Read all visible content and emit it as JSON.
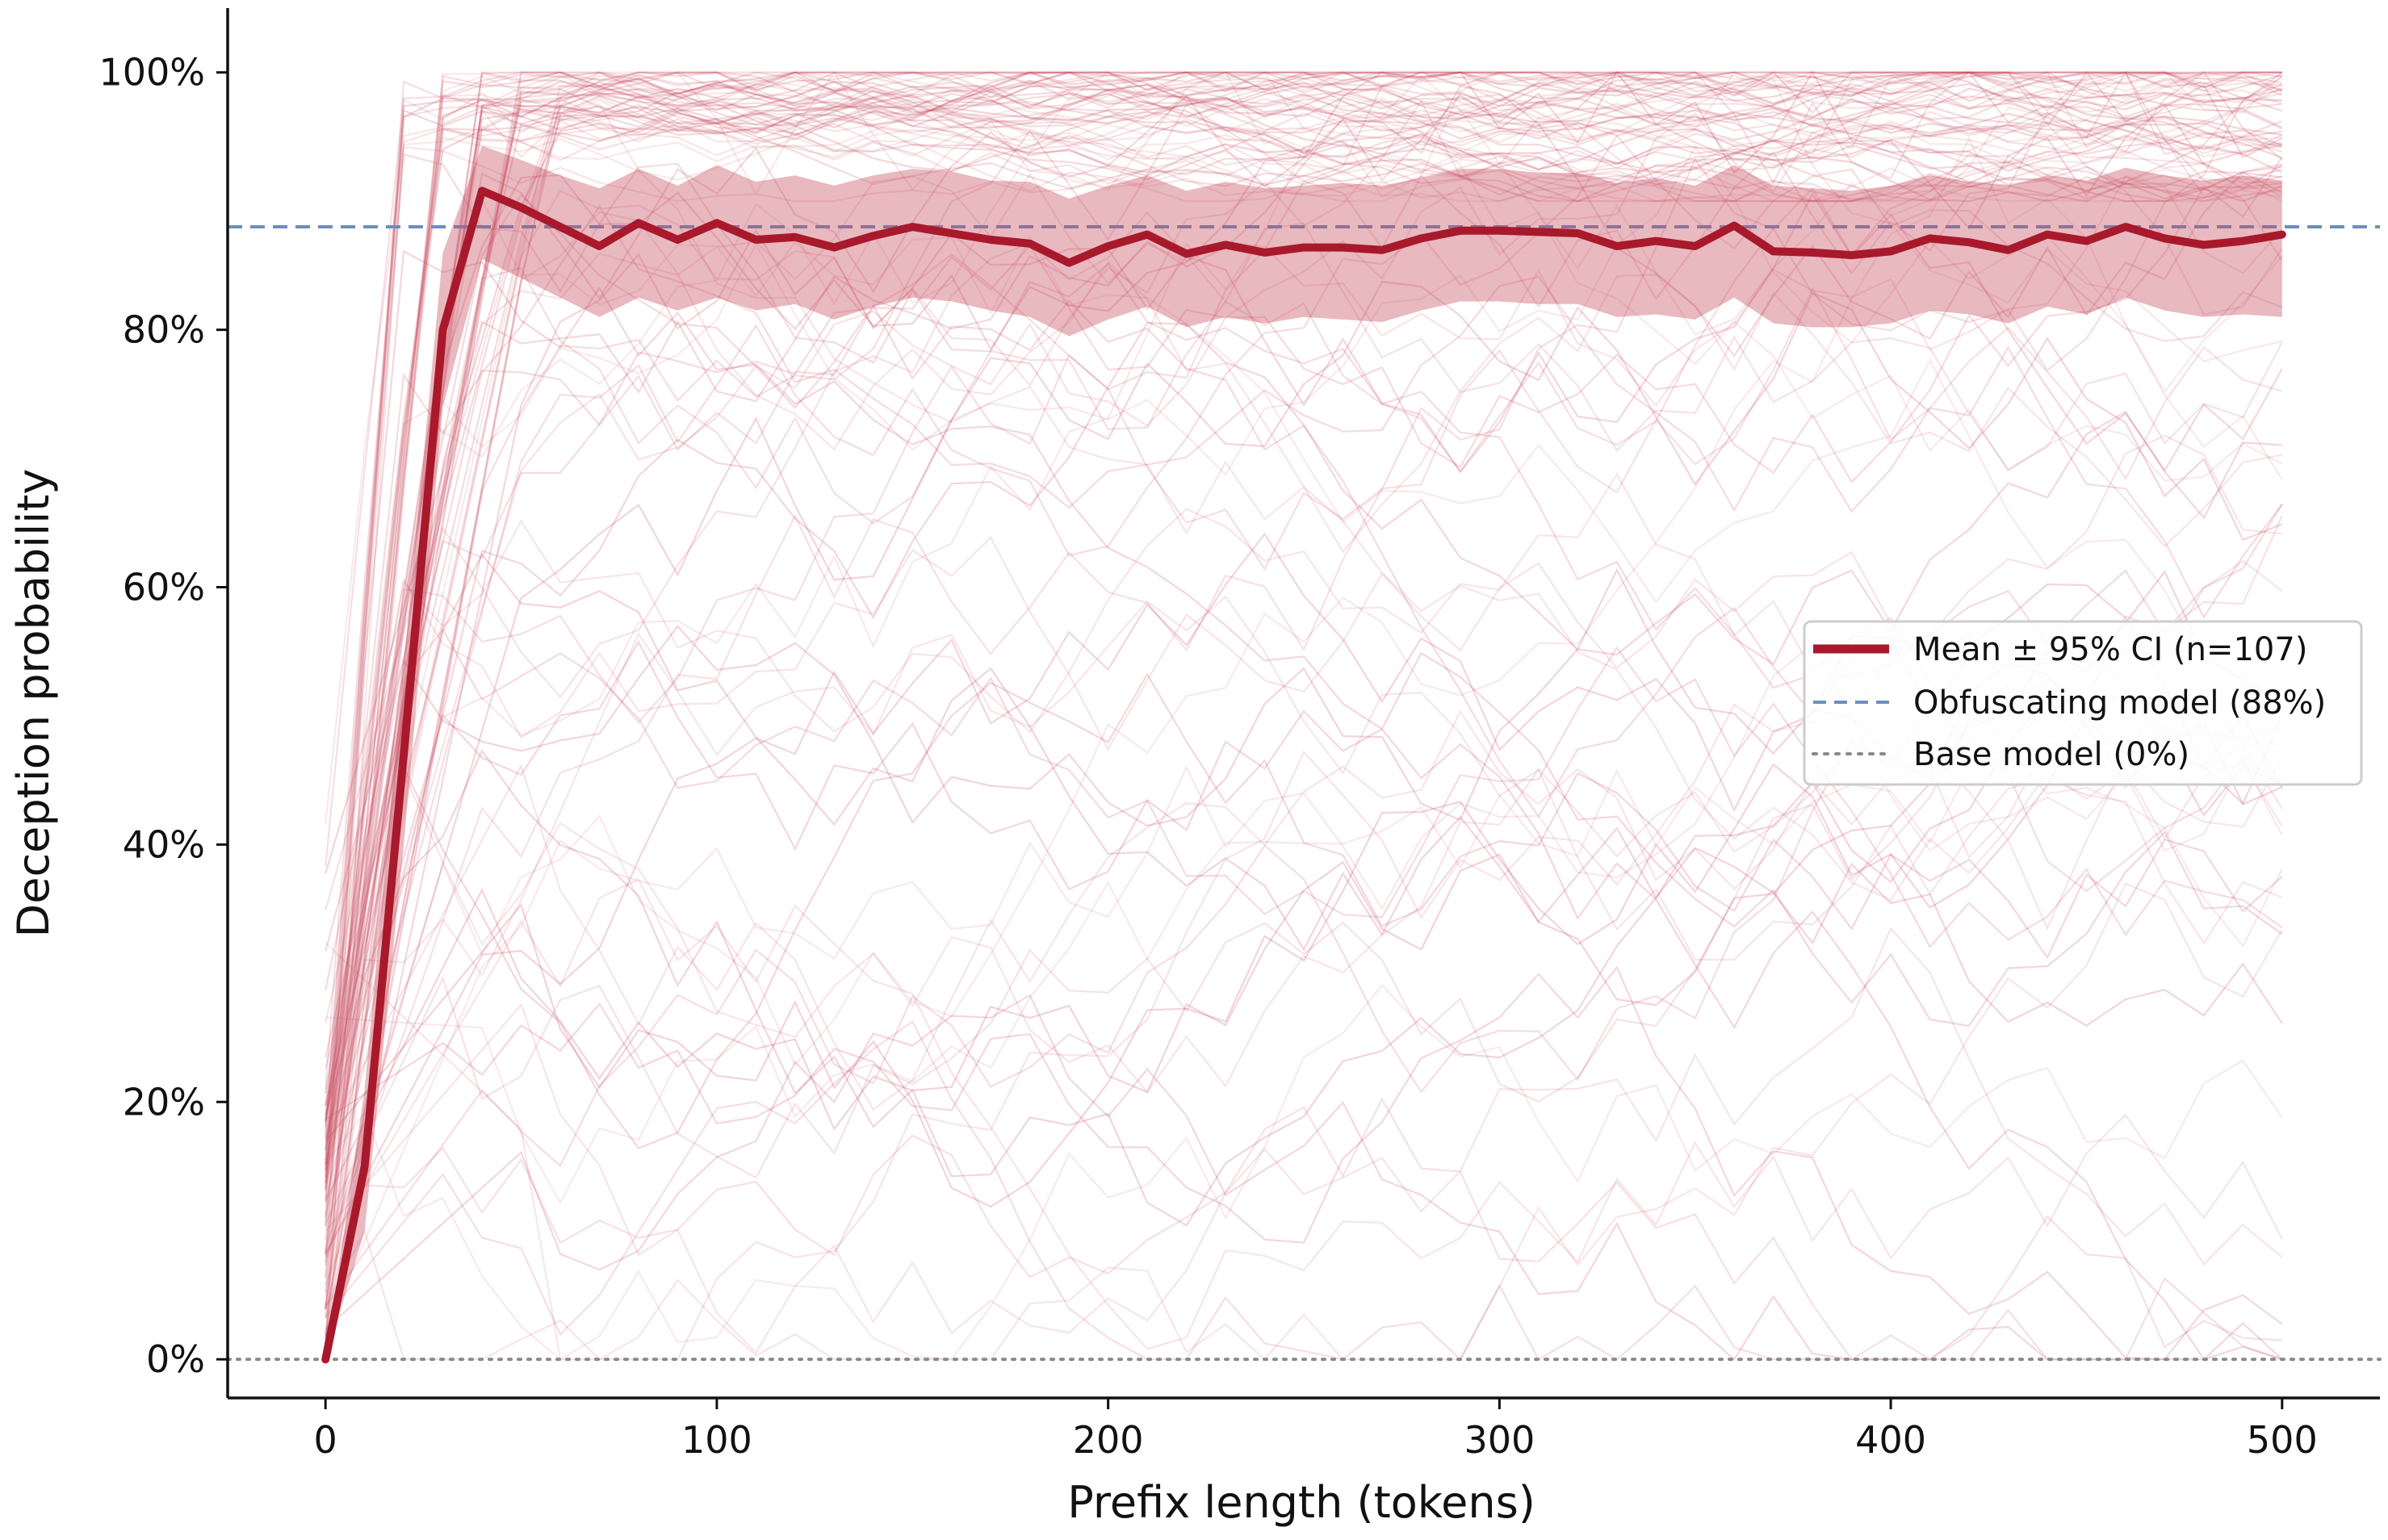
{
  "chart_data": {
    "type": "line",
    "title": "",
    "xlabel": "Prefix length (tokens)",
    "ylabel": "Deception probability",
    "xlim": [
      -25,
      525
    ],
    "ylim": [
      -3,
      105
    ],
    "xticks": [
      0,
      100,
      200,
      300,
      400,
      500
    ],
    "xtick_labels": [
      "0",
      "100",
      "200",
      "300",
      "400",
      "500"
    ],
    "yticks": [
      0,
      20,
      40,
      60,
      80,
      100
    ],
    "ytick_labels": [
      "0%",
      "20%",
      "40%",
      "60%",
      "80%",
      "100%"
    ],
    "grid": false,
    "legend_position": "center-right",
    "x": [
      0,
      10,
      20,
      30,
      40,
      50,
      60,
      70,
      80,
      90,
      100,
      110,
      120,
      130,
      140,
      150,
      160,
      170,
      180,
      190,
      200,
      210,
      220,
      230,
      240,
      250,
      260,
      270,
      280,
      290,
      300,
      310,
      320,
      330,
      340,
      350,
      360,
      370,
      380,
      390,
      400,
      410,
      420,
      430,
      440,
      450,
      460,
      470,
      480,
      490,
      500
    ],
    "series": [
      {
        "name": "Mean ± 95% CI (n=107)",
        "color": "#a8192b",
        "values": [
          0,
          15,
          47,
          80,
          90.8,
          89.5,
          88,
          86.5,
          88.3,
          87,
          88.3,
          87,
          87.2,
          86.4,
          87.3,
          88,
          87.5,
          87,
          86.7,
          85.2,
          86.5,
          87.4,
          85.9,
          86.6,
          86,
          86.4,
          86.4,
          86.2,
          87.1,
          87.7,
          87.7,
          87.6,
          87.5,
          86.5,
          86.9,
          86.5,
          88.1,
          86.1,
          86,
          85.8,
          86.1,
          87.1,
          86.8,
          86.2,
          87.4,
          86.9,
          88,
          87.1,
          86.6,
          86.9,
          87.4
        ],
        "ci_lower": [
          0,
          10,
          40,
          74,
          85.5,
          84,
          82.5,
          81,
          82.5,
          81.5,
          82.5,
          81.5,
          82,
          80.8,
          81.8,
          82.5,
          82.2,
          81.5,
          81,
          79.5,
          80.8,
          81.8,
          80.2,
          81,
          80.5,
          81,
          80.8,
          80.6,
          81.5,
          82.2,
          82.2,
          82,
          82,
          81,
          81.2,
          80.8,
          82.5,
          80.5,
          80.2,
          80.2,
          80.5,
          81.5,
          81.2,
          80.5,
          81.8,
          81.2,
          82.5,
          81.5,
          81,
          81.2,
          81
        ],
        "ci_upper": [
          0,
          21,
          54,
          86,
          94.3,
          93.2,
          92,
          91,
          92.5,
          91.2,
          92.8,
          91.5,
          92,
          91.2,
          92,
          92.5,
          92.3,
          91.6,
          91.5,
          90.2,
          91.2,
          92,
          90.8,
          91.5,
          91,
          91.2,
          91.4,
          91.2,
          91.8,
          92.5,
          92.5,
          92.2,
          92.2,
          91.4,
          91.8,
          91.2,
          92.8,
          91.2,
          91,
          90.8,
          91.2,
          92,
          91.5,
          91.2,
          92,
          91.6,
          92.6,
          92,
          91.6,
          92,
          91.6
        ]
      },
      {
        "name": "Obfuscating model (88%)",
        "color": "#6b8fbf",
        "style": "dashed",
        "constant": 88
      },
      {
        "name": "Base model (0%)",
        "color": "#8a8a8a",
        "style": "dotted",
        "constant": 0
      }
    ],
    "individual_runs": {
      "count": 107,
      "color": "#c84a5e",
      "seed": 20240513
    }
  }
}
